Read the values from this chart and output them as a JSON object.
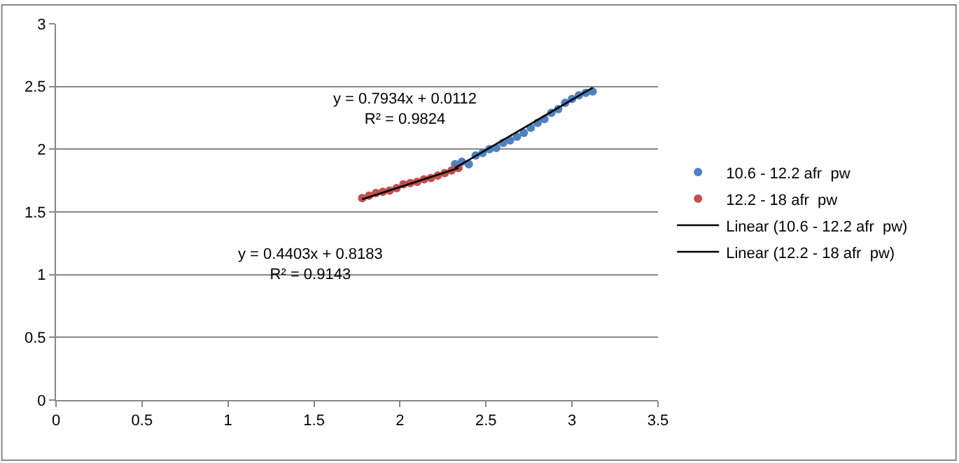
{
  "chart_data": {
    "type": "scatter",
    "xlim": [
      0,
      3.5
    ],
    "ylim": [
      0,
      3
    ],
    "xticks": [
      0,
      0.5,
      1,
      1.5,
      2,
      2.5,
      3,
      3.5
    ],
    "yticks": [
      0,
      0.5,
      1,
      1.5,
      2,
      2.5,
      3
    ],
    "grid": "y",
    "legend": "right",
    "marker": "circle",
    "series": [
      {
        "name": "10.6 - 12.2 afr  pw",
        "color": "#4f81bd",
        "x": [
          2.32,
          2.36,
          2.4,
          2.44,
          2.48,
          2.52,
          2.56,
          2.6,
          2.64,
          2.68,
          2.72,
          2.76,
          2.8,
          2.84,
          2.88,
          2.92,
          2.96,
          3.0,
          3.04,
          3.08,
          3.12
        ],
        "values": [
          1.88,
          1.9,
          1.88,
          1.95,
          1.97,
          2.0,
          2.01,
          2.05,
          2.07,
          2.1,
          2.13,
          2.17,
          2.21,
          2.24,
          2.29,
          2.32,
          2.37,
          2.4,
          2.43,
          2.45,
          2.46
        ]
      },
      {
        "name": "12.2 - 18 afr  pw",
        "color": "#c0504d",
        "x": [
          1.78,
          1.82,
          1.86,
          1.9,
          1.94,
          1.98,
          2.02,
          2.06,
          2.1,
          2.14,
          2.18,
          2.22,
          2.26,
          2.3,
          2.34
        ],
        "values": [
          1.61,
          1.63,
          1.65,
          1.66,
          1.67,
          1.69,
          1.72,
          1.73,
          1.74,
          1.76,
          1.77,
          1.79,
          1.81,
          1.83,
          1.85
        ]
      },
      {
        "name": "Linear (10.6 - 12.2 afr  pw)",
        "type": "line",
        "color": "#000000",
        "line_style": "solid",
        "marker": "none",
        "x": [
          2.32,
          3.12
        ],
        "values": [
          1.85,
          2.49
        ]
      },
      {
        "name": "Linear (12.2 - 18 afr  pw)",
        "type": "line",
        "color": "#000000",
        "line_style": "solid",
        "marker": "none",
        "x": [
          1.78,
          2.34
        ],
        "values": [
          1.6,
          1.85
        ]
      }
    ],
    "annotations": [
      "y = 0.7934x + 0.0112\nR² = 0.9824",
      "y = 0.4403x + 0.8183\nR² = 0.9143"
    ]
  }
}
